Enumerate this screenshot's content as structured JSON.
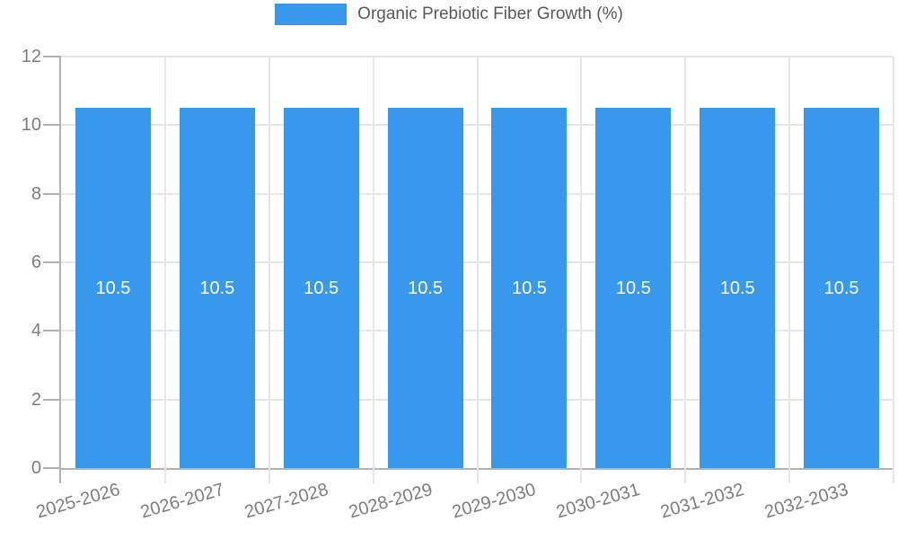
{
  "chart_data": {
    "type": "bar",
    "title": "Organic Prebiotic Fiber Growth (%)",
    "legend": {
      "position": "top",
      "label": "Organic Prebiotic Fiber Growth (%)"
    },
    "categories": [
      "2025-2026",
      "2026-2027",
      "2027-2028",
      "2028-2029",
      "2029-2030",
      "2030-2031",
      "2031-2032",
      "2032-2033"
    ],
    "values": [
      10.5,
      10.5,
      10.5,
      10.5,
      10.5,
      10.5,
      10.5,
      10.5
    ],
    "value_labels": [
      "10.5",
      "10.5",
      "10.5",
      "10.5",
      "10.5",
      "10.5",
      "10.5",
      "10.5"
    ],
    "xlabel": "",
    "ylabel": "",
    "ylim": [
      0,
      12
    ],
    "yticks": [
      0,
      2,
      4,
      6,
      8,
      10,
      12
    ],
    "grid": true,
    "value_label_position": "center",
    "x_label_rotation_deg": -16,
    "colors": {
      "bar": "#3899ec",
      "value_label": "#ffffff",
      "grid": "#e6e6e6",
      "axis": "#b2b2b2",
      "tick_label": "#7d7d7d",
      "legend_label": "#58595b",
      "background": "#ffffff"
    }
  }
}
